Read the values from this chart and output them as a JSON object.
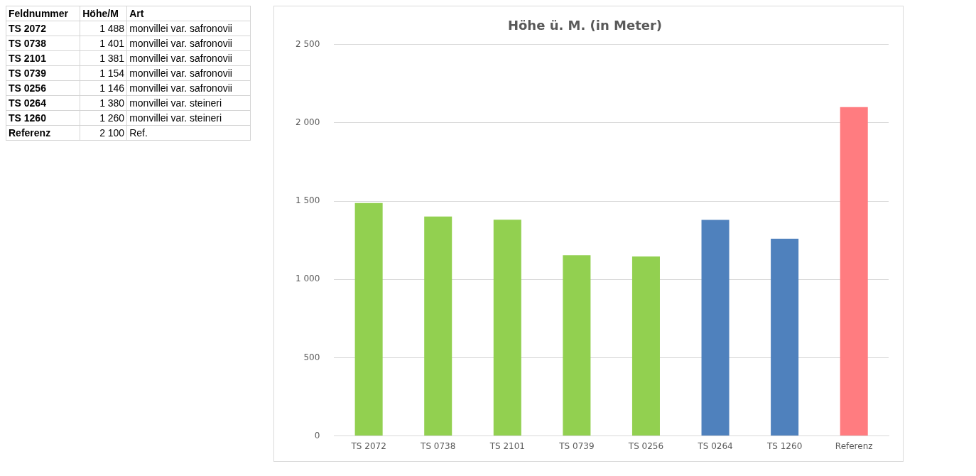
{
  "chart_data": {
    "type": "bar",
    "title": "Höhe ü. M. (in Meter)",
    "categories": [
      "TS 2072",
      "TS 0738",
      "TS 2101",
      "TS 0739",
      "TS 0256",
      "TS 0264",
      "TS 1260",
      "Referenz"
    ],
    "values": [
      1488,
      1401,
      1381,
      1154,
      1146,
      1380,
      1260,
      2100
    ],
    "colors": [
      "#92d050",
      "#92d050",
      "#92d050",
      "#92d050",
      "#92d050",
      "#4f81bd",
      "#4f81bd",
      "#ff7c80"
    ],
    "ylim": [
      0,
      2500
    ],
    "yticks": [
      0,
      500,
      {
        "value": 1000,
        "label": "1 000"
      },
      {
        "value": 1500,
        "label": "1 500"
      },
      {
        "value": 2000,
        "label": "2 000"
      },
      {
        "value": 2500,
        "label": "2 500"
      }
    ],
    "grid": "y",
    "legend": false,
    "annotations": [
      "Feldnummer",
      "Höhe/M",
      "Art",
      "1 488",
      "1 401",
      "1 381",
      "1 154",
      "1 146",
      "1 380",
      "1 260",
      "2 100",
      "monvillei var. safronovii",
      "monvillei var. safronovii",
      "monvillei var. safronovii",
      "monvillei var. safronovii",
      "monvillei var. safronovii",
      "monvillei var. steineri",
      "monvillei var. steineri",
      "Ref."
    ]
  }
}
